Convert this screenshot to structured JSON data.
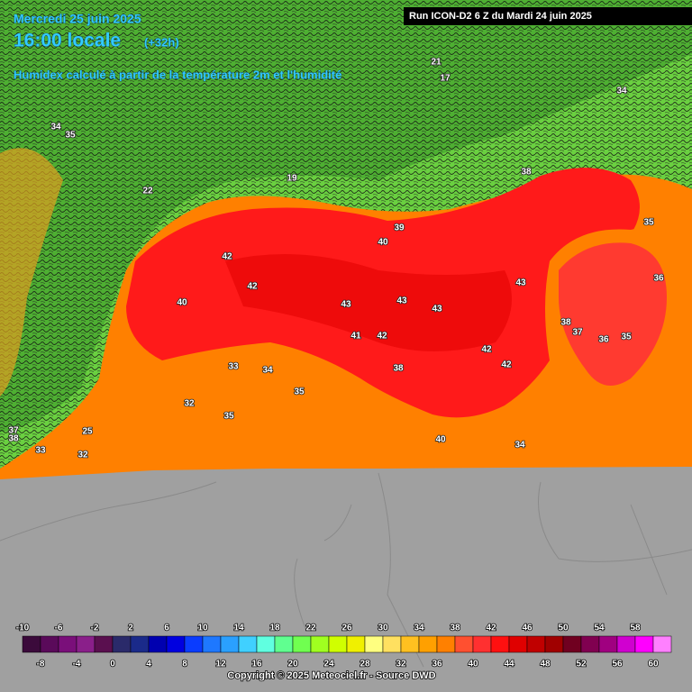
{
  "header": {
    "date": "Mercredi 25 juin 2025",
    "time": "16:00 locale",
    "lead": "(+32h)",
    "subtitle": "Humidex calculé à partir de la température 2m et l'humidité",
    "run": "Run ICON-D2 6 Z du Mardi 24 juin 2025"
  },
  "map_labels": [
    42,
    42,
    40,
    43,
    43,
    43,
    43,
    41,
    42,
    42,
    42,
    38,
    38,
    37,
    36,
    35,
    36,
    35,
    35,
    34,
    33,
    32,
    35,
    40,
    39,
    40,
    34,
    37,
    38,
    32,
    33,
    25,
    34,
    35,
    34,
    38,
    19,
    22,
    21,
    17
  ],
  "legend": {
    "ticks": [
      -10,
      -8,
      -6,
      -4,
      -2,
      0,
      2,
      4,
      6,
      8,
      10,
      12,
      14,
      16,
      18,
      20,
      22,
      24,
      26,
      28,
      30,
      32,
      34,
      36,
      38,
      40,
      42,
      44,
      46,
      48,
      50,
      52,
      54,
      56,
      58,
      60
    ],
    "colors": [
      "#3b0a3b",
      "#5a0a5a",
      "#7a0f7a",
      "#8a1f8a",
      "#5a0f4f",
      "#2a2a6a",
      "#1a2a8a",
      "#0000b0",
      "#0000e0",
      "#0a3cff",
      "#1e78ff",
      "#2aa0ff",
      "#40d0ff",
      "#60ffe0",
      "#60ff90",
      "#70ff50",
      "#a0ff20",
      "#d0ff00",
      "#f0f000",
      "#ffff80",
      "#ffe060",
      "#ffc020",
      "#ffa000",
      "#ff8000",
      "#ff5030",
      "#ff3030",
      "#ff1010",
      "#e00000",
      "#c00000",
      "#a00000",
      "#700020",
      "#800050",
      "#a00080",
      "#d000d0",
      "#ff00ff",
      "#ff80ff"
    ]
  },
  "copyright": "Copyright © 2025 Meteociel.fr - Source DWD"
}
